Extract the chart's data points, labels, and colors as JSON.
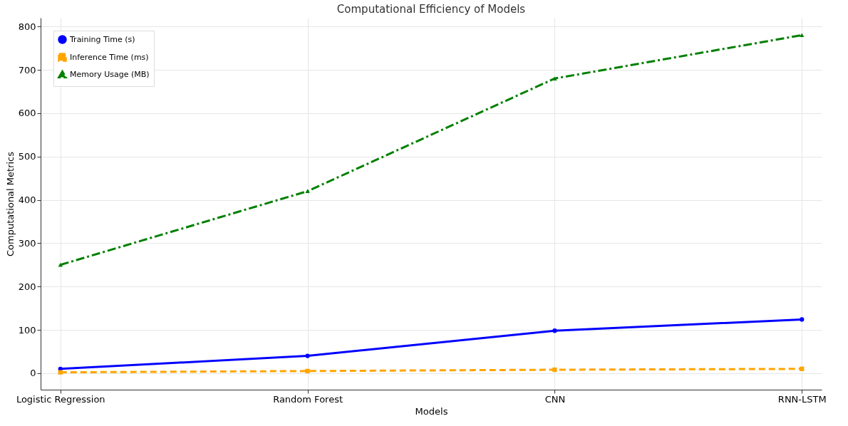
{
  "chart_data": {
    "type": "line",
    "title": "Computational Efficiency of Models",
    "xlabel": "Models",
    "ylabel": "Computational Metrics",
    "categories": [
      "Logistic Regression",
      "Random Forest",
      "CNN",
      "RNN-LSTM"
    ],
    "series": [
      {
        "name": "Training Time (s)",
        "color": "#0000ff",
        "marker": "circle",
        "line_style": "solid",
        "values": [
          10,
          40,
          98,
          124
        ]
      },
      {
        "name": "Inference Time (ms)",
        "color": "#ffa500",
        "marker": "square",
        "line_style": "dashed",
        "values": [
          2,
          5,
          8,
          10
        ]
      },
      {
        "name": "Memory Usage (MB)",
        "color": "#008000",
        "marker": "triangle",
        "line_style": "dashdot",
        "values": [
          250,
          420,
          680,
          780
        ]
      }
    ],
    "ylim": [
      -38,
      820
    ],
    "yticks": [
      0,
      100,
      200,
      300,
      400,
      500,
      600,
      700,
      800
    ],
    "grid": true,
    "legend": "top left"
  }
}
